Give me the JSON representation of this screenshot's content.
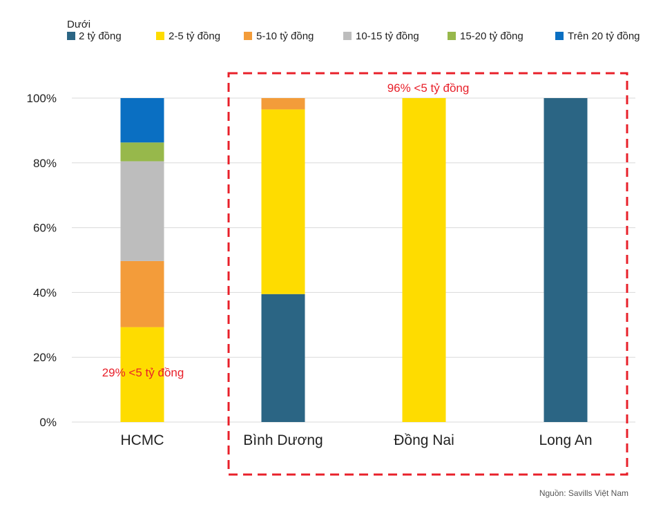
{
  "chart_data": {
    "type": "bar",
    "stacked": true,
    "percent": true,
    "categories": [
      "HCMC",
      "Bình Dương",
      "Đồng Nai",
      "Long An"
    ],
    "series": [
      {
        "name": "Dưới 2 tỷ đồng",
        "color": "#2B6584",
        "values": [
          0,
          39.5,
          0,
          100
        ]
      },
      {
        "name": "2-5 tỷ đồng",
        "color": "#FEDC00",
        "values": [
          29.3,
          57.0,
          100,
          0
        ]
      },
      {
        "name": "5-10 tỷ đồng",
        "color": "#F39C3A",
        "values": [
          20.4,
          3.5,
          0,
          0
        ]
      },
      {
        "name": "10-15 tỷ đồng",
        "color": "#BDBDBD",
        "values": [
          30.8,
          0,
          0,
          0
        ]
      },
      {
        "name": "15-20 tỷ đồng",
        "color": "#97B84B",
        "values": [
          5.8,
          0,
          0,
          0
        ]
      },
      {
        "name": "Trên 20 tỷ đồng",
        "color": "#0A6FC2",
        "values": [
          13.7,
          0,
          0,
          0
        ]
      }
    ],
    "ylim": [
      0,
      100
    ],
    "yticks": [
      "0%",
      "20%",
      "40%",
      "60%",
      "80%",
      "100%"
    ],
    "grid": true,
    "legend_position": "top",
    "legend_first_label_lines": [
      "Dưới",
      "2 tỷ đồng"
    ],
    "annotations": {
      "hcmc": {
        "text": "29% <5 tỷ đồng",
        "color": "#E8202A"
      },
      "group": {
        "text": "96% <5 tỷ đồng",
        "color": "#E8202A"
      }
    },
    "source": "Nguồn: Savills Việt Nam",
    "title": "",
    "xlabel": "",
    "ylabel": ""
  }
}
